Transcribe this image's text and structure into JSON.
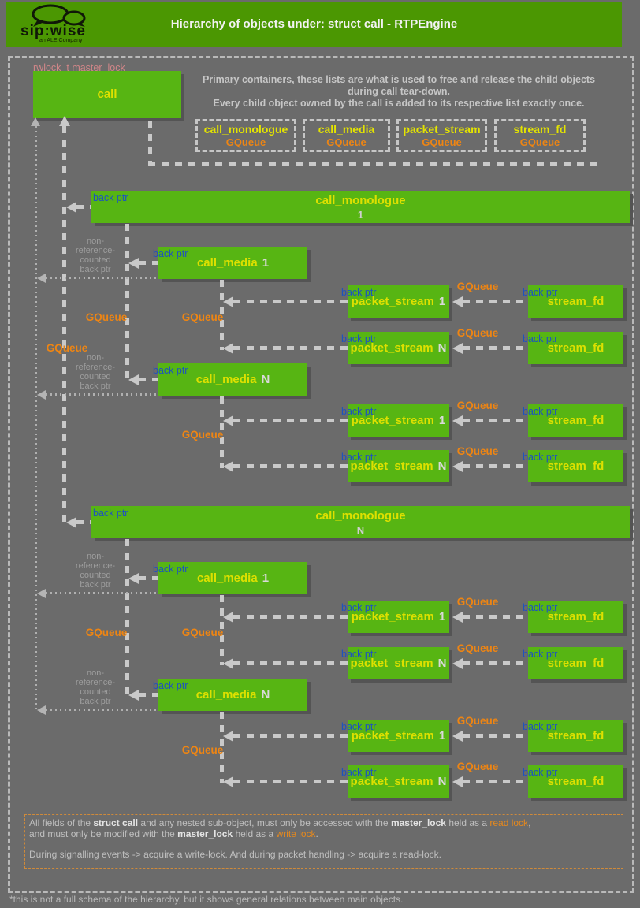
{
  "header": {
    "title": "Hierarchy of objects under: struct call - RTPEngine",
    "logo": {
      "text": "sip:wise",
      "subtext": "an ALE Company"
    }
  },
  "intro": {
    "lines": [
      "Primary containers, these lists are what is used to free and release the child objects",
      "during call tear-down.",
      "Every child object owned by the call is added to its respective list exactly once."
    ]
  },
  "containers": [
    {
      "name": "call_monologue",
      "type": "GQueue"
    },
    {
      "name": "call_media",
      "type": "GQueue"
    },
    {
      "name": "packet_stream",
      "type": "GQueue"
    },
    {
      "name": "stream_fd",
      "type": "GQueue"
    }
  ],
  "diagram": {
    "lock_label": "rwlock_t master_lock",
    "call_label": "call",
    "back_ptr_label": "back ptr",
    "gqueue_label": "GQueue",
    "non_ref_lines": [
      "non-",
      "reference-",
      "counted",
      "back ptr"
    ],
    "nodes": {
      "call_monologue_1": {
        "name": "call_monologue",
        "index": "1"
      },
      "call_monologue_n": {
        "name": "call_monologue",
        "index": "N"
      },
      "call_media_1": {
        "name": "call_media",
        "index": "1"
      },
      "call_media_n": {
        "name": "call_media",
        "index": "N"
      },
      "packet_stream_1": {
        "name": "packet_stream",
        "index": "1"
      },
      "packet_stream_n": {
        "name": "packet_stream",
        "index": "N"
      },
      "stream_fd": {
        "name": "stream_fd"
      }
    }
  },
  "legend": {
    "p1": [
      {
        "t": "All fields of the "
      },
      {
        "t": "struct call",
        "b": true
      },
      {
        "t": " and any nested sub-object, must only be accessed with the "
      },
      {
        "t": "master_lock",
        "b": true
      },
      {
        "t": " held as a "
      },
      {
        "t": "read lock",
        "c": "orange"
      },
      {
        "t": ","
      }
    ],
    "p2": [
      {
        "t": "and must only be modified with the "
      },
      {
        "t": "master_lock",
        "b": true
      },
      {
        "t": " held as a "
      },
      {
        "t": "write lock",
        "c": "orange"
      },
      {
        "t": "."
      }
    ],
    "p3": [
      {
        "t": "During signalling events -> acquire a write-lock. And during packet handling -> acquire a read-lock."
      }
    ]
  },
  "footer": "*this is not a full schema of the hierarchy, but it shows general relations between main objects.",
  "colors": {
    "header_green": "#4b9702",
    "box_green": "#57b513",
    "title_yellow": "#dde000",
    "gqueue_orange": "#ee8513",
    "back_ptr_blue": "#1d52c0",
    "lock_salmon": "#d08688"
  }
}
